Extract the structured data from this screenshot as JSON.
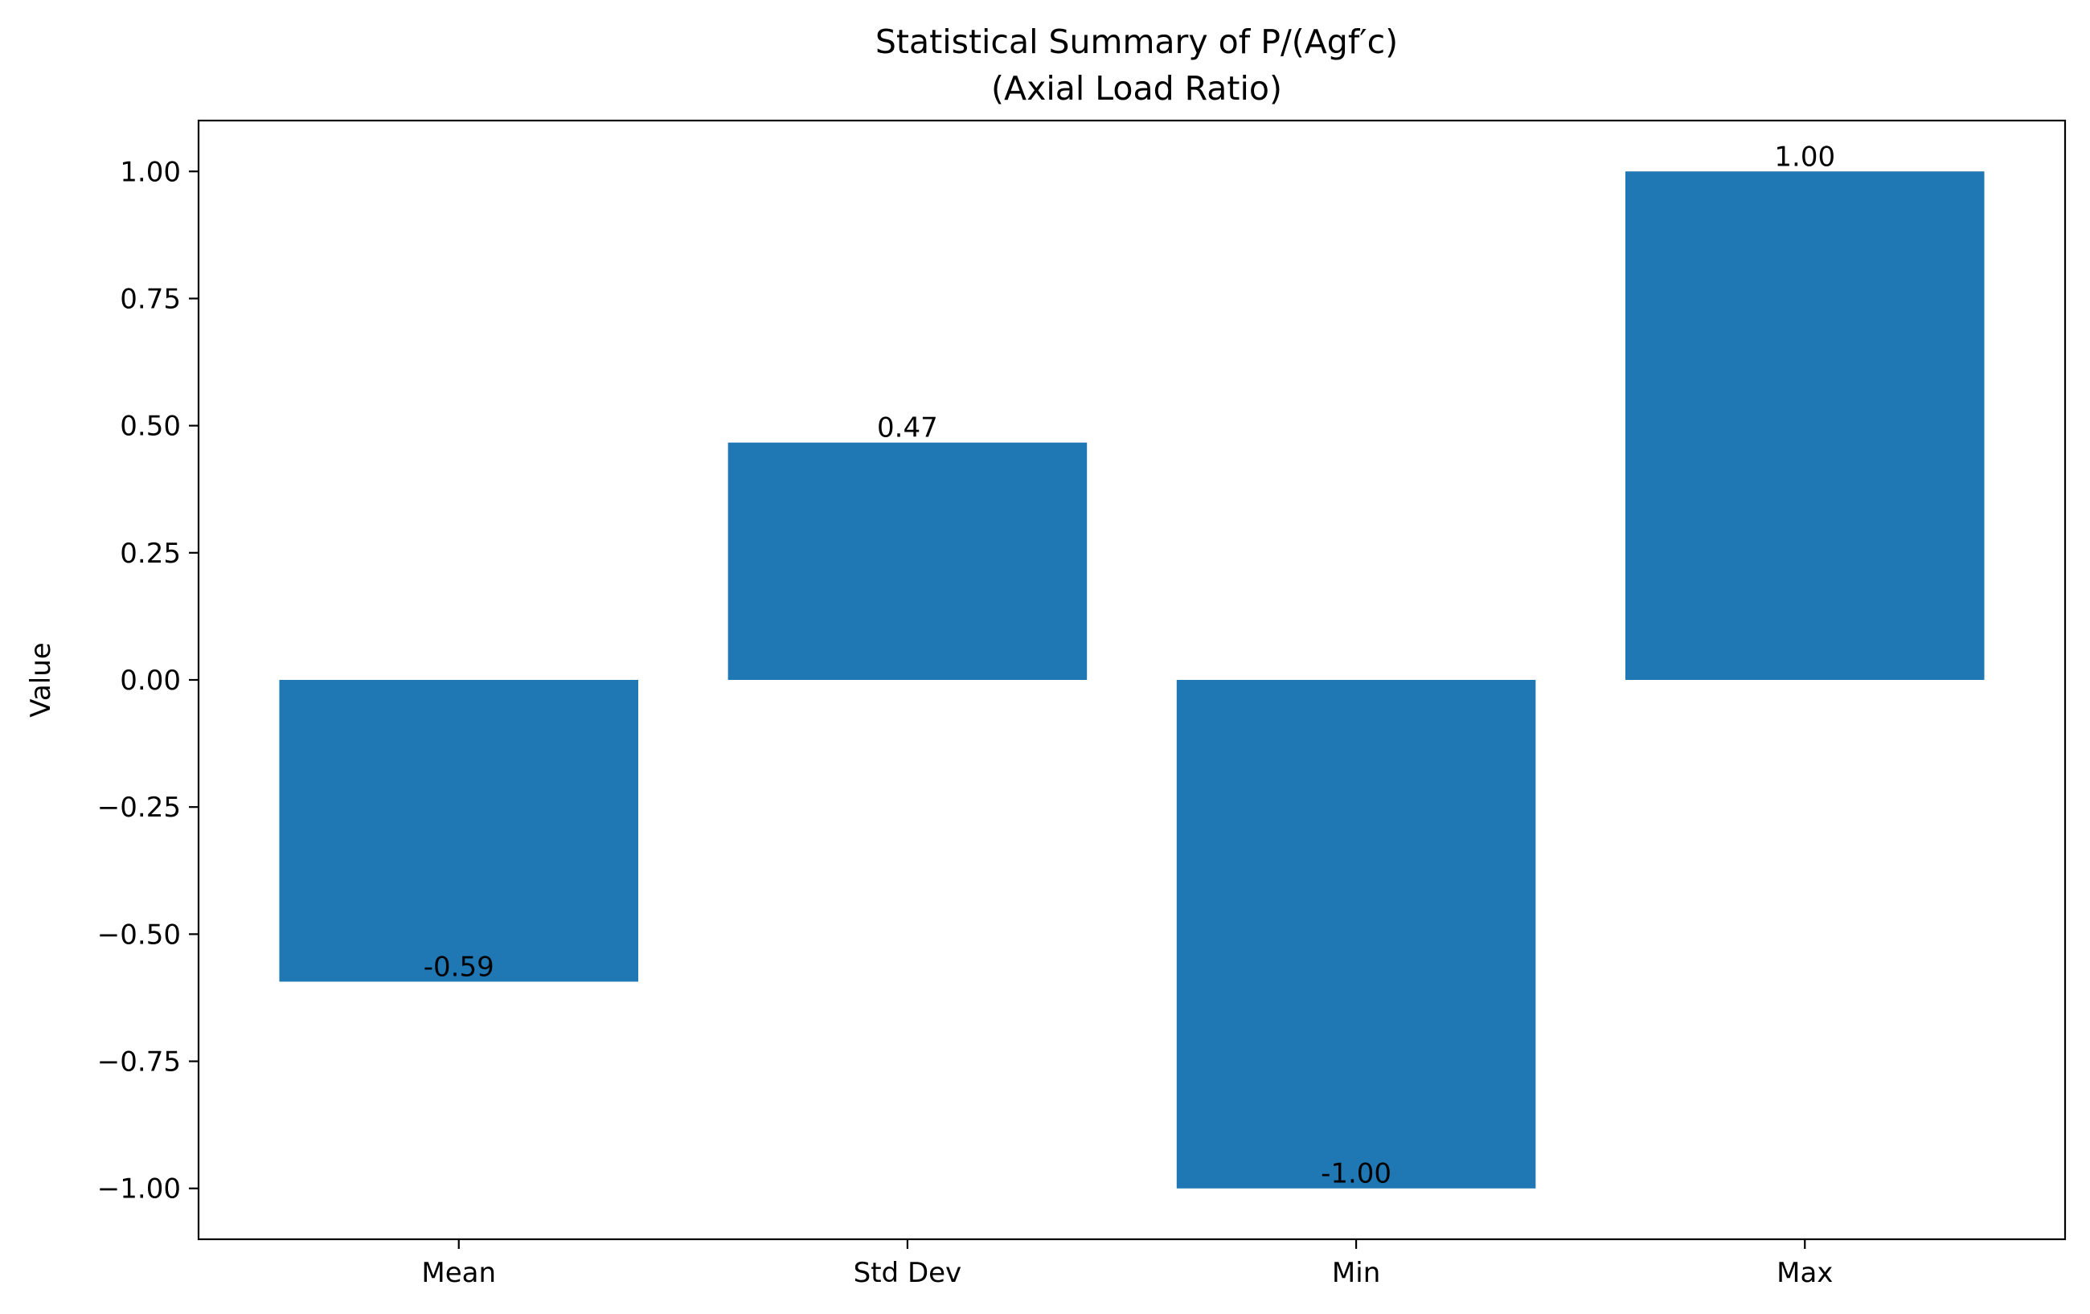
{
  "chart_data": {
    "type": "bar",
    "title": [
      "Statistical Summary of P/(Agf′c)",
      "(Axial Load Ratio)"
    ],
    "xlabel": "",
    "ylabel": "Value",
    "categories": [
      "Mean",
      "Std Dev",
      "Min",
      "Max"
    ],
    "values": [
      -0.5934,
      0.4667,
      -1.0,
      1.0
    ],
    "value_labels": [
      "-0.59",
      "0.47",
      "-1.00",
      "1.00"
    ],
    "ylim": [
      -1.1,
      1.1
    ],
    "yticks": [
      1.0,
      0.75,
      0.5,
      0.25,
      0.0,
      -0.25,
      -0.5,
      -0.75,
      -1.0
    ],
    "ytick_labels": [
      "1.00",
      "0.75",
      "0.50",
      "0.25",
      "0.00",
      "−0.25",
      "−0.50",
      "−0.75",
      "−1.00"
    ],
    "grid": false,
    "legend": "none",
    "bar_color": "#1f77b4"
  }
}
